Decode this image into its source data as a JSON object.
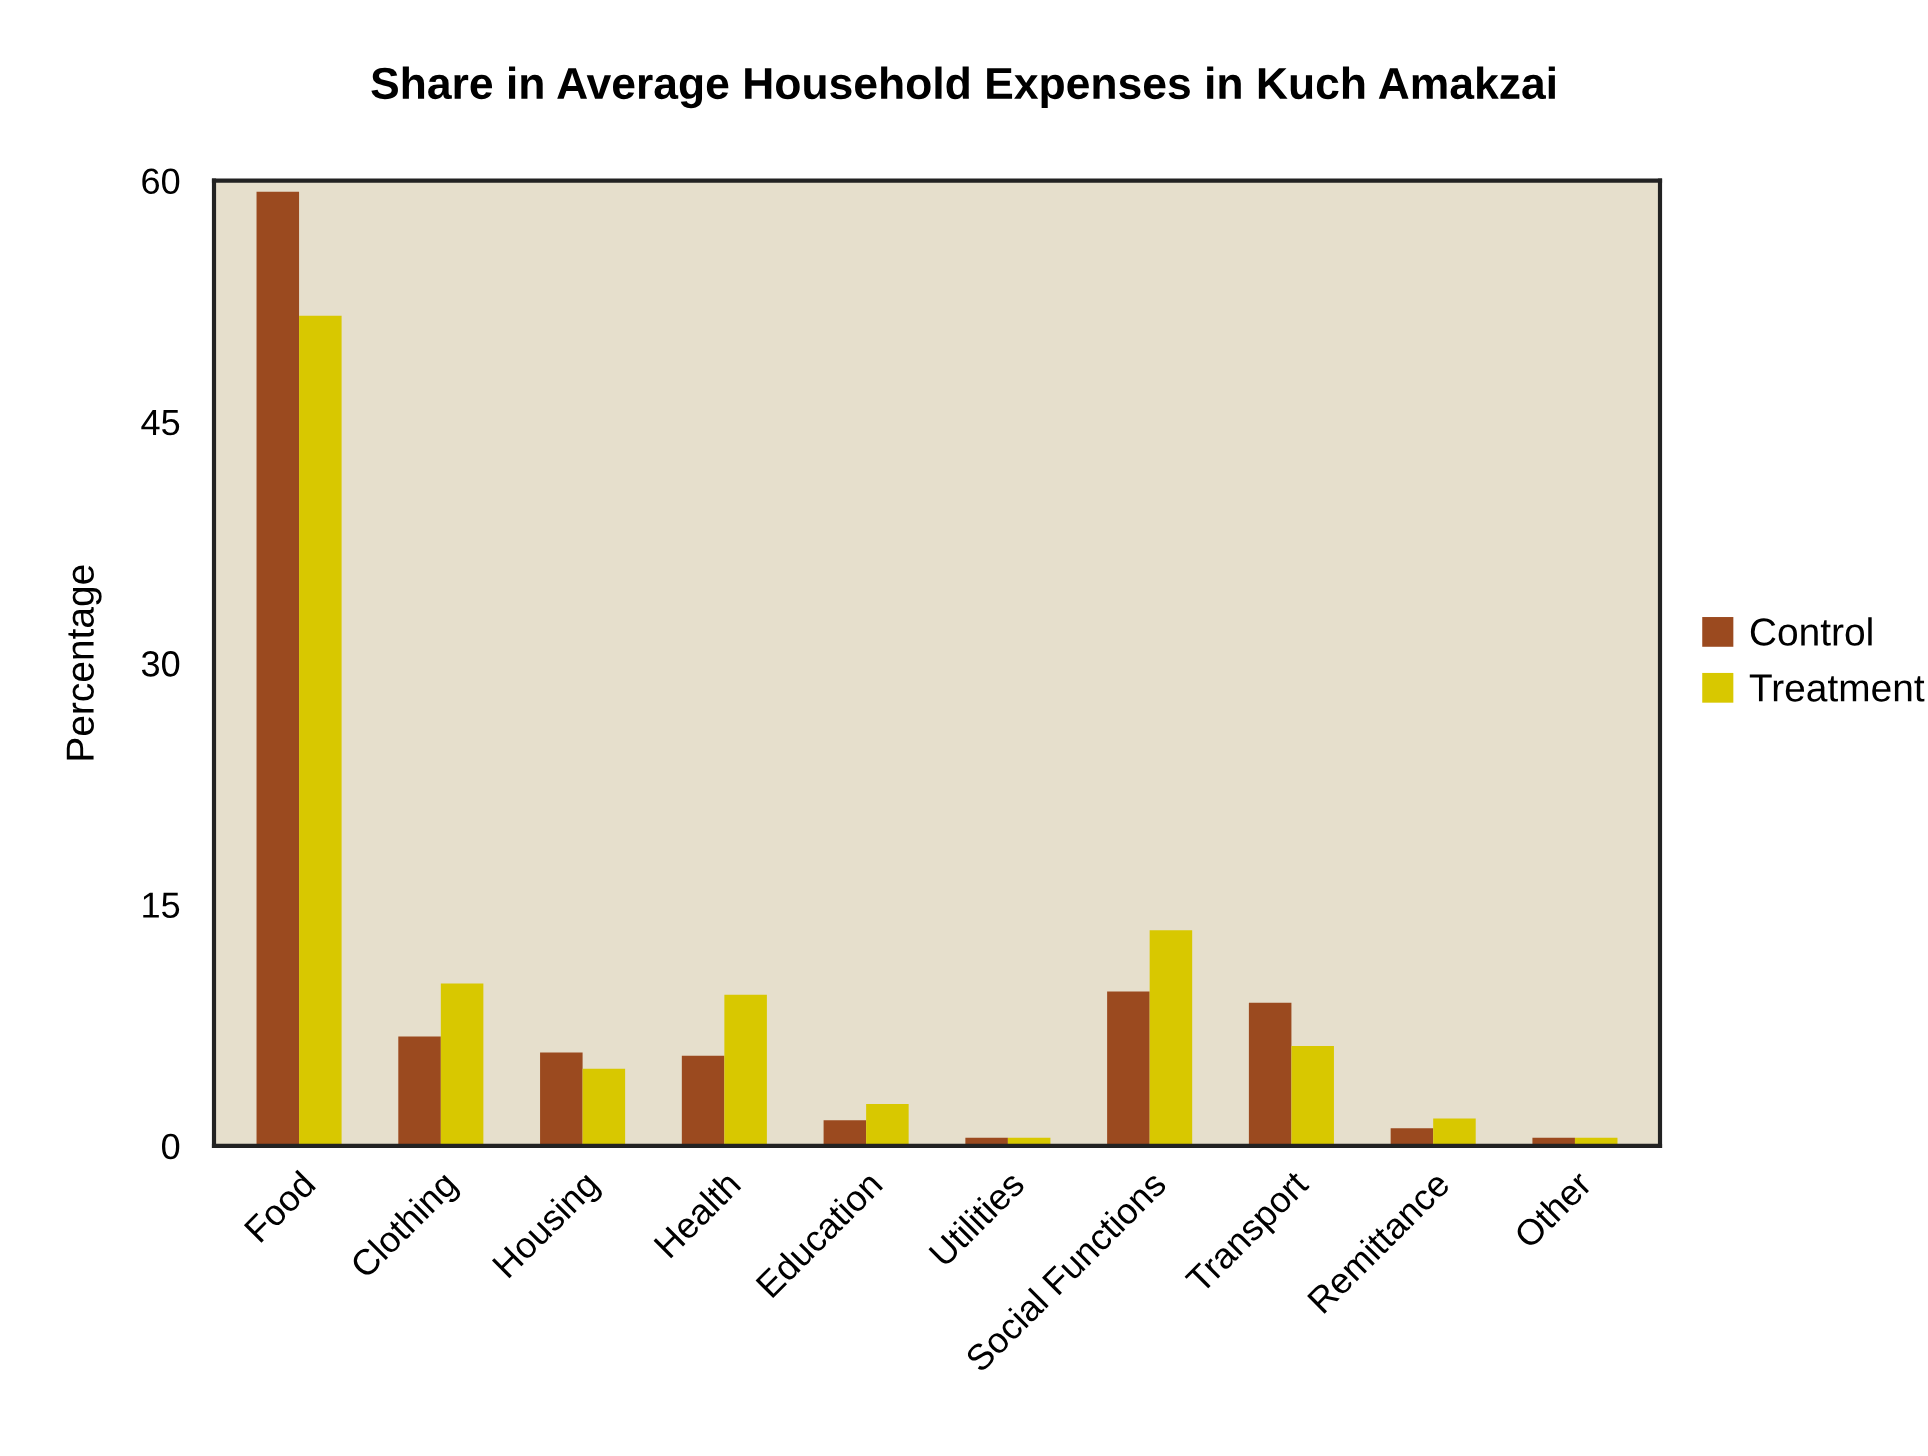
{
  "chart_data": {
    "type": "bar",
    "title": "Share in Average Household Expenses in Kuch Amakzai",
    "ylabel": "Percentage",
    "categories": [
      "Food",
      "Clothing",
      "Housing",
      "Health",
      "Education",
      "Utilities",
      "Social Functions",
      "Transport",
      "Remittance",
      "Other"
    ],
    "series": [
      {
        "name": "Control",
        "color": "#9b4a1f",
        "values": [
          59.3,
          6.8,
          5.8,
          5.6,
          1.6,
          0.5,
          9.6,
          8.9,
          1.1,
          0.5
        ]
      },
      {
        "name": "Treatment",
        "color": "#d8c800",
        "values": [
          51.6,
          10.1,
          4.8,
          9.4,
          2.6,
          0.5,
          13.4,
          6.2,
          1.7,
          0.5
        ]
      }
    ],
    "ylim": [
      0,
      60
    ],
    "yticks": [
      0,
      15,
      30,
      45,
      60
    ],
    "grid": false,
    "legend": "right"
  }
}
